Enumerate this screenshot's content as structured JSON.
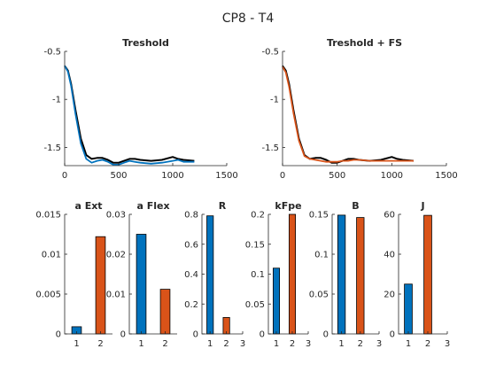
{
  "figure": {
    "title": "CP8 - T4"
  },
  "colors": {
    "black": "#000000",
    "blue": "#0072BD",
    "orange": "#D95319"
  },
  "chart_data": [
    {
      "type": "line",
      "title": "Treshold",
      "xlim": [
        0,
        1500
      ],
      "ylim": [
        -1.69,
        -0.5
      ],
      "xticks": [
        0,
        500,
        1000,
        1500
      ],
      "yticks": [
        -0.5,
        -1,
        -1.5
      ],
      "ytick_labels": [
        "-0.5",
        "-1",
        "-1.5"
      ],
      "series": [
        {
          "color": "black",
          "x": [
            0,
            30,
            60,
            100,
            150,
            200,
            250,
            300,
            350,
            400,
            450,
            500,
            550,
            600,
            650,
            700,
            800,
            900,
            1000,
            1050,
            1100,
            1200
          ],
          "y": [
            -0.65,
            -0.7,
            -0.84,
            -1.11,
            -1.41,
            -1.58,
            -1.62,
            -1.61,
            -1.61,
            -1.63,
            -1.66,
            -1.66,
            -1.64,
            -1.62,
            -1.62,
            -1.63,
            -1.64,
            -1.63,
            -1.6,
            -1.62,
            -1.63,
            -1.64
          ]
        },
        {
          "color": "blue",
          "x": [
            0,
            30,
            60,
            100,
            150,
            200,
            250,
            300,
            350,
            400,
            450,
            500,
            550,
            600,
            650,
            700,
            800,
            900,
            1000,
            1050,
            1100,
            1200
          ],
          "y": [
            -0.65,
            -0.71,
            -0.86,
            -1.15,
            -1.46,
            -1.62,
            -1.66,
            -1.64,
            -1.63,
            -1.65,
            -1.68,
            -1.68,
            -1.66,
            -1.64,
            -1.65,
            -1.66,
            -1.67,
            -1.66,
            -1.64,
            -1.63,
            -1.65,
            -1.65
          ]
        }
      ]
    },
    {
      "type": "line",
      "title": "Treshold + FS",
      "xlim": [
        0,
        1500
      ],
      "ylim": [
        -1.69,
        -0.5
      ],
      "xticks": [
        0,
        500,
        1000,
        1500
      ],
      "yticks": [
        -0.5,
        -1,
        -1.5
      ],
      "ytick_labels": [
        "-0.5",
        "-1",
        "-1.5"
      ],
      "series": [
        {
          "color": "black",
          "x": [
            0,
            30,
            60,
            100,
            150,
            200,
            250,
            300,
            350,
            400,
            450,
            500,
            550,
            600,
            650,
            700,
            800,
            900,
            1000,
            1050,
            1100,
            1200
          ],
          "y": [
            -0.65,
            -0.7,
            -0.84,
            -1.11,
            -1.41,
            -1.58,
            -1.62,
            -1.61,
            -1.61,
            -1.63,
            -1.66,
            -1.66,
            -1.64,
            -1.62,
            -1.62,
            -1.63,
            -1.64,
            -1.63,
            -1.6,
            -1.62,
            -1.63,
            -1.64
          ]
        },
        {
          "color": "orange",
          "x": [
            0,
            30,
            60,
            100,
            150,
            200,
            250,
            300,
            350,
            400,
            450,
            500,
            550,
            600,
            650,
            700,
            800,
            900,
            1000,
            1050,
            1100,
            1200
          ],
          "y": [
            -0.66,
            -0.72,
            -0.87,
            -1.14,
            -1.43,
            -1.59,
            -1.62,
            -1.63,
            -1.64,
            -1.65,
            -1.65,
            -1.65,
            -1.64,
            -1.64,
            -1.63,
            -1.63,
            -1.64,
            -1.64,
            -1.64,
            -1.64,
            -1.64,
            -1.64
          ]
        }
      ]
    },
    {
      "type": "bar",
      "title": "a Ext",
      "xlim": [
        0.5,
        2.5
      ],
      "xticks": [
        1,
        2
      ],
      "ylim": [
        0,
        0.015
      ],
      "yticks": [
        0,
        0.005,
        0.01,
        0.015
      ],
      "ytick_labels": [
        "0",
        "0.005",
        "0.01",
        "0.015"
      ],
      "values": [
        0.0009,
        0.0122
      ]
    },
    {
      "type": "bar",
      "title": "a Flex",
      "xlim": [
        0.5,
        2.5
      ],
      "xticks": [
        1,
        2
      ],
      "ylim": [
        0,
        0.03
      ],
      "yticks": [
        0,
        0.01,
        0.02,
        0.03
      ],
      "ytick_labels": [
        "0",
        "0.01",
        "0.02",
        "0.03"
      ],
      "values": [
        0.025,
        0.0112
      ]
    },
    {
      "type": "bar",
      "title": "R",
      "xlim": [
        0.5,
        3
      ],
      "xticks": [
        1,
        2,
        3
      ],
      "ylim": [
        0,
        0.8
      ],
      "yticks": [
        0,
        0.2,
        0.4,
        0.6,
        0.8
      ],
      "ytick_labels": [
        "0",
        "0.2",
        "0.4",
        "0.6",
        "0.8"
      ],
      "values": [
        0.79,
        0.11
      ]
    },
    {
      "type": "bar",
      "title": "kFpe",
      "xlim": [
        0.5,
        3
      ],
      "xticks": [
        1,
        2,
        3
      ],
      "ylim": [
        0,
        0.2
      ],
      "yticks": [
        0,
        0.05,
        0.1,
        0.15,
        0.2
      ],
      "ytick_labels": [
        "0",
        "0.05",
        "0.1",
        "0.15",
        "0.2"
      ],
      "values": [
        0.11,
        0.2
      ]
    },
    {
      "type": "bar",
      "title": "B",
      "xlim": [
        0.5,
        3
      ],
      "xticks": [
        1,
        2,
        3
      ],
      "ylim": [
        0,
        0.15
      ],
      "yticks": [
        0,
        0.05,
        0.1,
        0.15
      ],
      "ytick_labels": [
        "0",
        "0.05",
        "0.1",
        "0.15"
      ],
      "values": [
        0.149,
        0.146
      ]
    },
    {
      "type": "bar",
      "title": "J",
      "xlim": [
        0.5,
        3
      ],
      "xticks": [
        1,
        2,
        3
      ],
      "ylim": [
        0,
        60
      ],
      "yticks": [
        0,
        20,
        40,
        60
      ],
      "ytick_labels": [
        "0",
        "20",
        "40",
        "60"
      ],
      "values": [
        25,
        59.5
      ]
    }
  ]
}
